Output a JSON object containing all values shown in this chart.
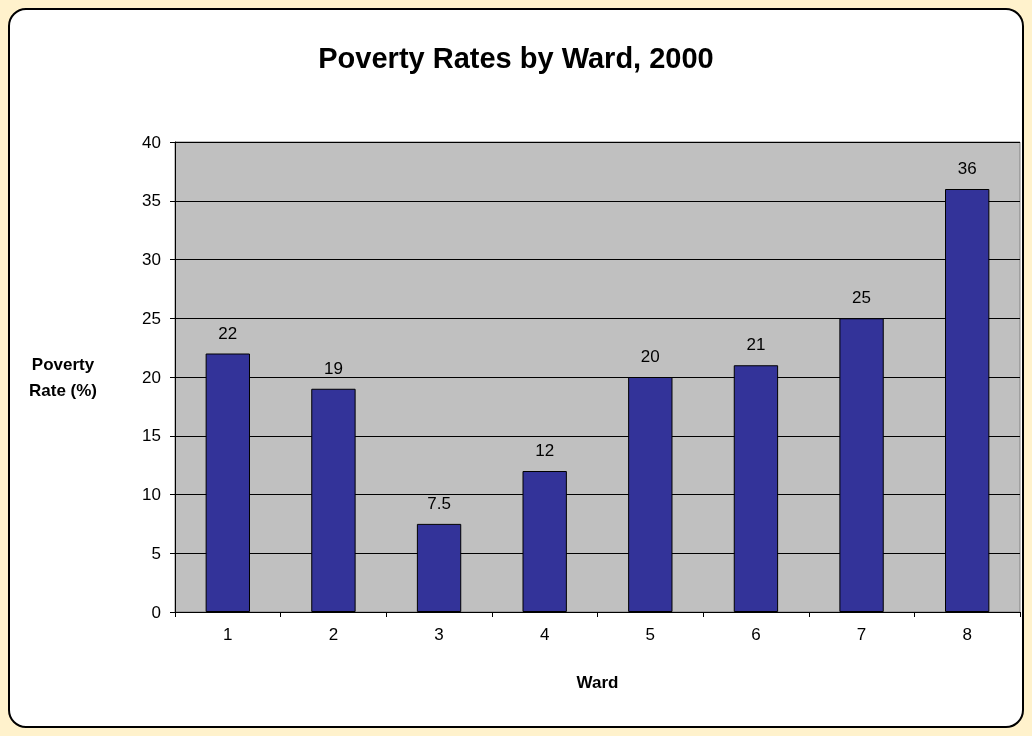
{
  "chart_data": {
    "type": "bar",
    "title": "Poverty Rates by Ward, 2000",
    "xlabel": "Ward",
    "ylabel": "Poverty Rate (%)",
    "categories": [
      "1",
      "2",
      "3",
      "4",
      "5",
      "6",
      "7",
      "8"
    ],
    "values": [
      22,
      19,
      7.5,
      12,
      20,
      21,
      25,
      36
    ],
    "color": "#333399",
    "ylim": [
      0,
      40
    ],
    "yticks": [
      0,
      5,
      10,
      15,
      20,
      25,
      30,
      35,
      40
    ],
    "grid": "y",
    "data_labels": true
  }
}
